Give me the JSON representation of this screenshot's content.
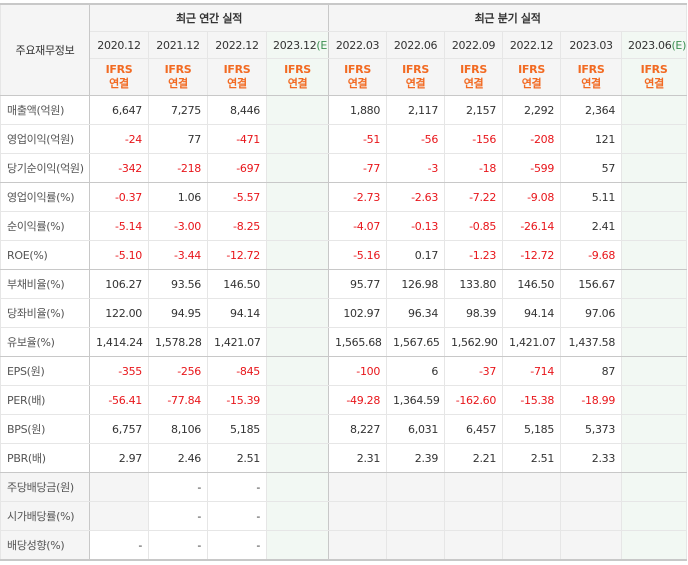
{
  "header": {
    "label": "주요재무정보",
    "annual_group": "최근 연간 실적",
    "quarter_group": "최근 분기 실적",
    "annual_periods": [
      {
        "date": "2020.12",
        "est": ""
      },
      {
        "date": "2021.12",
        "est": ""
      },
      {
        "date": "2022.12",
        "est": ""
      },
      {
        "date": "2023.12",
        "est": "(E)"
      }
    ],
    "quarter_periods": [
      {
        "date": "2022.03",
        "est": ""
      },
      {
        "date": "2022.06",
        "est": ""
      },
      {
        "date": "2022.09",
        "est": ""
      },
      {
        "date": "2022.12",
        "est": ""
      },
      {
        "date": "2023.03",
        "est": ""
      },
      {
        "date": "2023.06",
        "est": "(E)"
      }
    ],
    "ifrs_line1": "IFRS",
    "ifrs_line2": "연결"
  },
  "colors": {
    "negative": "#e8161b",
    "ifrs": "#f26a22",
    "estimate_bg": "#f2f8f3"
  },
  "rows": [
    {
      "label": "매출액(억원)",
      "annual": [
        "6,647",
        "7,275",
        "8,446",
        ""
      ],
      "quarter": [
        "1,880",
        "2,117",
        "2,157",
        "2,292",
        "2,364",
        ""
      ]
    },
    {
      "label": "영업이익(억원)",
      "annual": [
        "-24",
        "77",
        "-471",
        ""
      ],
      "quarter": [
        "-51",
        "-56",
        "-156",
        "-208",
        "121",
        ""
      ]
    },
    {
      "label": "당기순이익(억원)",
      "annual": [
        "-342",
        "-218",
        "-697",
        ""
      ],
      "quarter": [
        "-77",
        "-3",
        "-18",
        "-599",
        "57",
        ""
      ],
      "sep": true
    },
    {
      "label": "영업이익률(%)",
      "annual": [
        "-0.37",
        "1.06",
        "-5.57",
        ""
      ],
      "quarter": [
        "-2.73",
        "-2.63",
        "-7.22",
        "-9.08",
        "5.11",
        ""
      ]
    },
    {
      "label": "순이익률(%)",
      "annual": [
        "-5.14",
        "-3.00",
        "-8.25",
        ""
      ],
      "quarter": [
        "-4.07",
        "-0.13",
        "-0.85",
        "-26.14",
        "2.41",
        ""
      ]
    },
    {
      "label": "ROE(%)",
      "annual": [
        "-5.10",
        "-3.44",
        "-12.72",
        ""
      ],
      "quarter": [
        "-5.16",
        "0.17",
        "-1.23",
        "-12.72",
        "-9.68",
        ""
      ],
      "sep": true
    },
    {
      "label": "부채비율(%)",
      "annual": [
        "106.27",
        "93.56",
        "146.50",
        ""
      ],
      "quarter": [
        "95.77",
        "126.98",
        "133.80",
        "146.50",
        "156.67",
        ""
      ]
    },
    {
      "label": "당좌비율(%)",
      "annual": [
        "122.00",
        "94.95",
        "94.14",
        ""
      ],
      "quarter": [
        "102.97",
        "96.34",
        "98.39",
        "94.14",
        "97.06",
        ""
      ]
    },
    {
      "label": "유보율(%)",
      "annual": [
        "1,414.24",
        "1,578.28",
        "1,421.07",
        ""
      ],
      "quarter": [
        "1,565.68",
        "1,567.65",
        "1,562.90",
        "1,421.07",
        "1,437.58",
        ""
      ],
      "sep": true
    },
    {
      "label": "EPS(원)",
      "annual": [
        "-355",
        "-256",
        "-845",
        ""
      ],
      "quarter": [
        "-100",
        "6",
        "-37",
        "-714",
        "87",
        ""
      ]
    },
    {
      "label": "PER(배)",
      "annual": [
        "-56.41",
        "-77.84",
        "-15.39",
        ""
      ],
      "quarter": [
        "-49.28",
        "1,364.59",
        "-162.60",
        "-15.38",
        "-18.99",
        ""
      ]
    },
    {
      "label": "BPS(원)",
      "annual": [
        "6,757",
        "8,106",
        "5,185",
        ""
      ],
      "quarter": [
        "8,227",
        "6,031",
        "6,457",
        "5,185",
        "5,373",
        ""
      ]
    },
    {
      "label": "PBR(배)",
      "annual": [
        "2.97",
        "2.46",
        "2.51",
        ""
      ],
      "quarter": [
        "2.31",
        "2.39",
        "2.21",
        "2.51",
        "2.33",
        ""
      ],
      "sep": true
    },
    {
      "label": "주당배당금(원)",
      "annual": [
        "",
        "-",
        "-",
        ""
      ],
      "quarter": [
        "",
        "",
        "",
        "",
        "",
        ""
      ],
      "grayLabel": true
    },
    {
      "label": "시가배당률(%)",
      "annual": [
        "",
        "-",
        "-",
        ""
      ],
      "quarter": [
        "",
        "",
        "",
        "",
        "",
        ""
      ],
      "grayLabel": true
    },
    {
      "label": "배당성향(%)",
      "annual": [
        "-",
        "-",
        "-",
        ""
      ],
      "quarter": [
        "",
        "",
        "",
        "",
        "",
        ""
      ],
      "grayLabel": true
    }
  ]
}
